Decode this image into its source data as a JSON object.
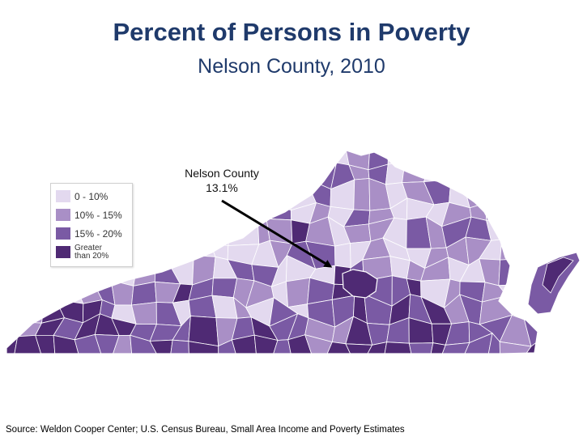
{
  "title": "Percent of Persons in Poverty",
  "subtitle": "Nelson County, 2010",
  "map": {
    "region": "Virginia",
    "unit": "County / independent city"
  },
  "legend": {
    "items": [
      {
        "label": "0 - 10%",
        "color": "#e3d9ef"
      },
      {
        "label": "10% - 15%",
        "color": "#a98fc6"
      },
      {
        "label": "15% - 20%",
        "color": "#7a5aa4"
      },
      {
        "label": "Greater than 20%",
        "line1": "Greater",
        "line2": "than 20%",
        "color": "#4f2a74"
      }
    ]
  },
  "callout": {
    "line1": "Nelson County",
    "line2": "13.1%"
  },
  "colors": {
    "title": "#1f3a6b",
    "border": "#ffffff",
    "arrow": "#000000"
  },
  "source": "Source: Weldon Cooper Center; U.S. Census Bureau, Small Area Income and Poverty Estimates"
}
